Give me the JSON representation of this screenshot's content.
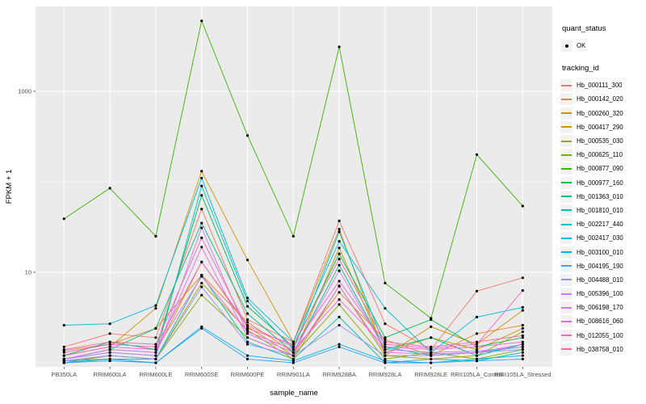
{
  "figure": {
    "background": "#FFFFFF",
    "panel_bg": "#EBEBEB",
    "grid_color": "#FFFFFF",
    "tick_mark_color": "#333333",
    "axis_text_color": "#4D4D4D",
    "point_color": "#000000"
  },
  "legend": {
    "quant_title": "quant_status",
    "quant_items": [
      {
        "label": "OK",
        "symbol": "point"
      }
    ],
    "tracking_title": "tracking_id"
  },
  "chart_data": {
    "type": "line",
    "title": "",
    "xlabel": "sample_name",
    "ylabel": "FPKM + 1",
    "y_scale": "log10",
    "y_ticks": [
      10,
      1000
    ],
    "y_minor_gridlines": [
      1,
      100
    ],
    "ylim": [
      0.9,
      9000
    ],
    "grid": true,
    "legend_position": "right",
    "categories": [
      "PB350LA",
      "RRIM600LA",
      "RRIM600LE",
      "RRIM600SE",
      "RRIM600PE",
      "RRIM901LA",
      "RRIM928BA",
      "RRIM928LA",
      "RRIM928LE",
      "RRII105LA_Control",
      "RRII105LA_Stressed"
    ],
    "series": [
      {
        "name": "Hb_000111_300",
        "color": "#F8766D",
        "values": [
          1.5,
          2.1,
          1.9,
          50,
          3.0,
          1.7,
          37,
          2.7,
          1.4,
          6.2,
          8.7
        ]
      },
      {
        "name": "Hb_000142_020",
        "color": "#E88526",
        "values": [
          1.37,
          1.6,
          2.4,
          9.3,
          2.8,
          1.3,
          6.0,
          1.8,
          1.2,
          2.1,
          2.6
        ]
      },
      {
        "name": "Hb_000260_320",
        "color": "#D89000",
        "values": [
          1.2,
          1.5,
          4.0,
          131,
          13.7,
          1.7,
          30,
          1.2,
          2.5,
          1.6,
          3.8
        ]
      },
      {
        "name": "Hb_000417_290",
        "color": "#C09B00",
        "values": [
          1.1,
          1.4,
          1.3,
          13,
          2.5,
          1.2,
          18.6,
          1.3,
          1.9,
          1.4,
          2.4
        ]
      },
      {
        "name": "Hb_000535_030",
        "color": "#A3A500",
        "values": [
          1.05,
          1.2,
          1.1,
          7.6,
          2.3,
          1.1,
          7.1,
          1.2,
          1.1,
          1.2,
          2.2
        ]
      },
      {
        "name": "Hb_000625_110",
        "color": "#7CAE00",
        "values": [
          1.0,
          1.2,
          1.1,
          5.6,
          1.9,
          1.2,
          4.4,
          1.1,
          1.3,
          1.1,
          1.4
        ]
      },
      {
        "name": "Hb_000877_090",
        "color": "#39B600",
        "values": [
          39,
          85,
          25,
          6000,
          325,
          25,
          3100,
          7.6,
          3.1,
          200,
          54
        ]
      },
      {
        "name": "Hb_000977_160",
        "color": "#00BB4E",
        "values": [
          1.2,
          1.7,
          1.4,
          71,
          4.2,
          1.5,
          16,
          1.9,
          3.0,
          1.5,
          1.9
        ]
      },
      {
        "name": "Hb_001363_010",
        "color": "#00BF7D",
        "values": [
          1.1,
          1.4,
          2.4,
          35,
          3.5,
          1.3,
          12,
          1.4,
          1.9,
          1.2,
          1.6
        ]
      },
      {
        "name": "Hb_001810_010",
        "color": "#00C1A3",
        "values": [
          1.0,
          1.1,
          1.1,
          9.3,
          1.7,
          1.1,
          3.2,
          1.0,
          1.1,
          1.05,
          1.3
        ]
      },
      {
        "name": "Hb_002217_440",
        "color": "#00BFC4",
        "values": [
          1.1,
          1.3,
          1.2,
          90,
          4.8,
          1.4,
          28,
          1.5,
          1.2,
          1.3,
          1.5
        ]
      },
      {
        "name": "Hb_002417_030",
        "color": "#00BAE0",
        "values": [
          2.6,
          2.7,
          4.3,
          110,
          5.2,
          1.7,
          22,
          4.0,
          1.3,
          3.2,
          4.1
        ]
      },
      {
        "name": "Hb_003100_010",
        "color": "#00B0F6",
        "values": [
          1.05,
          1.1,
          1.0,
          2.5,
          1.2,
          1.05,
          1.6,
          1.05,
          1.0,
          1.1,
          1.2
        ]
      },
      {
        "name": "Hb_004195_190",
        "color": "#35A2FF",
        "values": [
          1.0,
          1.05,
          1.0,
          2.4,
          1.1,
          1.0,
          1.5,
          1.0,
          1.0,
          1.05,
          1.1
        ]
      },
      {
        "name": "Hb_004488_010",
        "color": "#9590FF",
        "values": [
          1.05,
          1.2,
          1.1,
          6.9,
          1.6,
          1.2,
          2.6,
          1.2,
          1.2,
          1.3,
          1.4
        ]
      },
      {
        "name": "Hb_005396_100",
        "color": "#C77CFF",
        "values": [
          1.1,
          1.3,
          1.2,
          31,
          2.1,
          1.3,
          10.4,
          1.4,
          1.3,
          1.35,
          1.5
        ]
      },
      {
        "name": "Hb_006198_170",
        "color": "#E76BF3",
        "values": [
          1.1,
          1.4,
          1.3,
          19,
          1.9,
          1.2,
          7.0,
          1.3,
          1.25,
          1.3,
          1.6
        ]
      },
      {
        "name": "Hb_008616_060",
        "color": "#FA62DB",
        "values": [
          1.2,
          1.5,
          1.4,
          9.0,
          2.2,
          1.4,
          5.0,
          1.5,
          1.4,
          1.5,
          1.7
        ]
      },
      {
        "name": "Hb_012055_100",
        "color": "#FF61C9",
        "values": [
          1.3,
          1.6,
          1.5,
          13,
          2.6,
          1.5,
          8.0,
          1.6,
          1.45,
          1.6,
          6.3
        ]
      },
      {
        "name": "Hb_038758_010",
        "color": "#FF67A4",
        "values": [
          1.4,
          1.7,
          1.6,
          24,
          2.4,
          1.6,
          14,
          1.7,
          1.5,
          1.7,
          2.0
        ]
      }
    ]
  }
}
